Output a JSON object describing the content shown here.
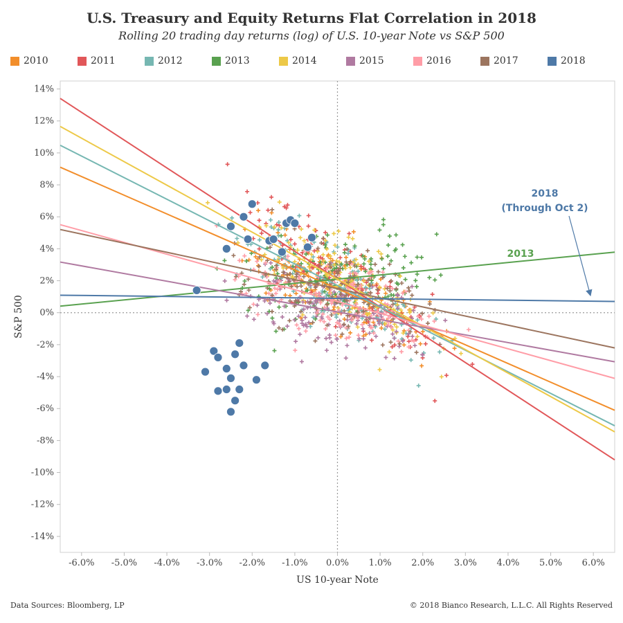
{
  "chart_data": {
    "type": "scatter",
    "title": "U.S. Treasury and Equity Returns Flat Correlation in 2018",
    "subtitle": "Rolling 20 trading day returns (log) of U.S. 10-year Note vs S&P 500",
    "xlabel": "US 10-year Note",
    "ylabel": "S&P 500",
    "xlim": [
      -6.5,
      6.5
    ],
    "ylim": [
      -15,
      14.5
    ],
    "x_ticks": [
      "-6.0%",
      "-5.0%",
      "-4.0%",
      "-3.0%",
      "-2.0%",
      "-1.0%",
      "0.0%",
      "1.0%",
      "2.0%",
      "3.0%",
      "4.0%",
      "5.0%",
      "6.0%"
    ],
    "x_tick_values": [
      -6,
      -5,
      -4,
      -3,
      -2,
      -1,
      0,
      1,
      2,
      3,
      4,
      5,
      6
    ],
    "y_ticks": [
      "14%",
      "12%",
      "10%",
      "8%",
      "6%",
      "4%",
      "2%",
      "0%",
      "-2%",
      "-4%",
      "-6%",
      "-8%",
      "-10%",
      "-12%",
      "-14%"
    ],
    "y_tick_values": [
      14,
      12,
      10,
      8,
      6,
      4,
      2,
      0,
      -2,
      -4,
      -6,
      -8,
      -10,
      -12,
      -14
    ],
    "grid": false,
    "legend_position": "top",
    "series": [
      {
        "name": "2010",
        "color": "#f28e2b",
        "trend": {
          "slope": -1.17,
          "intercept": 1.5
        }
      },
      {
        "name": "2011",
        "color": "#e15759",
        "trend": {
          "slope": -1.74,
          "intercept": 2.1
        }
      },
      {
        "name": "2012",
        "color": "#76b7b2",
        "trend": {
          "slope": -1.35,
          "intercept": 1.7
        }
      },
      {
        "name": "2013",
        "color": "#59a14f",
        "trend": {
          "slope": 0.26,
          "intercept": 2.1
        }
      },
      {
        "name": "2014",
        "color": "#edc948",
        "trend": {
          "slope": -1.47,
          "intercept": 2.1
        }
      },
      {
        "name": "2015",
        "color": "#b07aa1",
        "trend": {
          "slope": -0.48,
          "intercept": 0.05
        }
      },
      {
        "name": "2016",
        "color": "#ff9da7",
        "trend": {
          "slope": -0.74,
          "intercept": 0.7
        }
      },
      {
        "name": "2017",
        "color": "#9c755f",
        "trend": {
          "slope": -0.57,
          "intercept": 1.5
        }
      },
      {
        "name": "2018",
        "color": "#4e79a7",
        "trend": {
          "slope": -0.03,
          "intercept": 0.9
        },
        "points": [
          [
            -3.3,
            1.4
          ],
          [
            -2.6,
            4.0
          ],
          [
            -2.5,
            5.4
          ],
          [
            -2.2,
            6.0
          ],
          [
            -2.1,
            4.6
          ],
          [
            -2.0,
            6.8
          ],
          [
            -1.6,
            4.5
          ],
          [
            -1.5,
            4.6
          ],
          [
            -1.3,
            3.8
          ],
          [
            -1.2,
            5.6
          ],
          [
            -1.1,
            5.8
          ],
          [
            -1.0,
            5.6
          ],
          [
            -0.7,
            4.1
          ],
          [
            -0.6,
            4.7
          ],
          [
            -3.1,
            -3.7
          ],
          [
            -2.9,
            -2.4
          ],
          [
            -2.8,
            -2.8
          ],
          [
            -2.6,
            -3.5
          ],
          [
            -2.5,
            -4.1
          ],
          [
            -2.4,
            -2.6
          ],
          [
            -2.3,
            -1.9
          ],
          [
            -2.2,
            -3.3
          ],
          [
            -1.9,
            -4.2
          ],
          [
            -1.7,
            -3.3
          ],
          [
            -2.8,
            -4.9
          ],
          [
            -2.6,
            -4.8
          ],
          [
            -2.3,
            -4.8
          ],
          [
            -2.4,
            -5.5
          ],
          [
            -2.5,
            -6.2
          ]
        ]
      }
    ],
    "annotations": [
      {
        "text": "2018",
        "color": "#4e79a7"
      },
      {
        "text": "(Through Oct 2)",
        "color": "#4e79a7"
      },
      {
        "text": "2013",
        "color": "#59a14f"
      }
    ]
  },
  "footer": {
    "source": "Data Sources: Bloomberg, LP",
    "copyright": "© 2018 Bianco Research, L.L.C. All Rights Reserved"
  }
}
